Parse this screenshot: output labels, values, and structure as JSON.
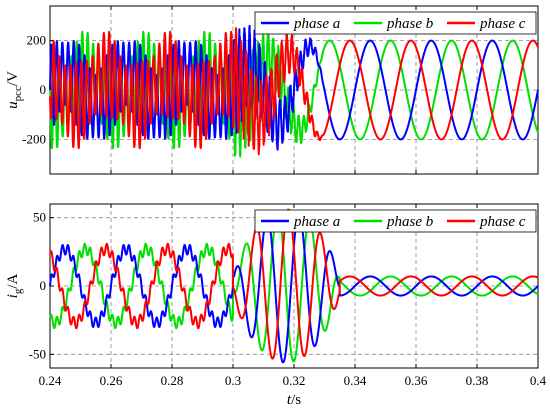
{
  "chart_data": [
    {
      "type": "line",
      "ylabel": "u",
      "ylabel_sub": "pcc",
      "ylabel_unit": "/V",
      "xlim": [
        0.24,
        0.4
      ],
      "ylim": [
        -340,
        340
      ],
      "xticks": [
        0.24,
        0.26,
        0.28,
        0.3,
        0.32,
        0.34,
        0.36,
        0.38,
        0.4
      ],
      "yticks": [
        -200,
        0,
        200
      ],
      "ytick_labels": [
        "-200",
        "0",
        "200"
      ],
      "grid": "dashed",
      "legend_position": "top-right",
      "series": [
        {
          "name": "phase a",
          "color": "#0000ff",
          "phase_deg": 0
        },
        {
          "name": "phase b",
          "color": "#00e000",
          "phase_deg": -120
        },
        {
          "name": "phase c",
          "color": "#ff0000",
          "phase_deg": 120
        }
      ],
      "segments": [
        {
          "t": [
            0.24,
            0.3
          ],
          "fundamental_hz": 50,
          "amplitude": 65,
          "harmonic_amplitude": 150,
          "harmonic_hz": 550
        },
        {
          "t": [
            0.3,
            0.32
          ],
          "description_values": {
            "peak": 330,
            "trough": -330
          }
        },
        {
          "t": [
            0.32,
            0.4
          ],
          "fundamental_hz": 50,
          "amplitude": 200
        }
      ]
    },
    {
      "type": "line",
      "ylabel": "i",
      "ylabel_sub": "g",
      "ylabel_unit": "/A",
      "xlabel": "t/s",
      "xlim": [
        0.24,
        0.4
      ],
      "ylim": [
        -60,
        60
      ],
      "xticks": [
        0.24,
        0.26,
        0.28,
        0.3,
        0.32,
        0.34,
        0.36,
        0.38,
        0.4
      ],
      "xtick_labels": [
        "0.24",
        "0.26",
        "0.28",
        "0.3",
        "0.32",
        "0.34",
        "0.36",
        "0.38",
        "0.4"
      ],
      "yticks": [
        -50,
        0,
        50
      ],
      "ytick_labels": [
        "-50",
        "0",
        "50"
      ],
      "grid": "dashed",
      "legend_position": "top-right",
      "series": [
        {
          "name": "phase a",
          "color": "#0000ff",
          "phase_deg": 0
        },
        {
          "name": "phase b",
          "color": "#00e000",
          "phase_deg": -120
        },
        {
          "name": "phase c",
          "color": "#ff0000",
          "phase_deg": 120
        }
      ],
      "segments": [
        {
          "t": [
            0.24,
            0.3
          ],
          "fundamental_hz": 50,
          "amplitude": 27,
          "harmonic_amplitude": 4
        },
        {
          "t": [
            0.3,
            0.33
          ],
          "peak": 55,
          "trough": -57
        },
        {
          "t": [
            0.33,
            0.4
          ],
          "fundamental_hz": 50,
          "amplitude": 7
        }
      ]
    }
  ]
}
